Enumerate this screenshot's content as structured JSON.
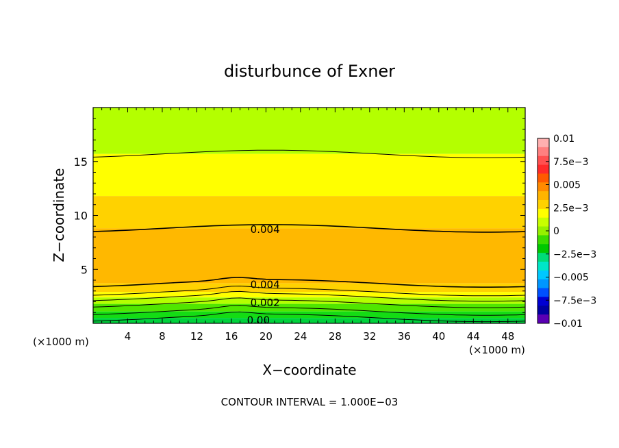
{
  "chart_data": {
    "type": "contour",
    "title": "disturbunce of Exner",
    "xlabel": "X−coordinate",
    "ylabel": "Z−coordinate",
    "x_unit_left": "(×1000 m)",
    "x_unit_right": "(×1000 m)",
    "footer": "CONTOUR INTERVAL = 1.000E−03",
    "xlim": [
      0,
      50
    ],
    "ylim": [
      0,
      20
    ],
    "x_ticks": [
      4,
      8,
      12,
      16,
      20,
      24,
      28,
      32,
      36,
      40,
      44,
      48
    ],
    "y_ticks": [
      5,
      10,
      15
    ],
    "contour_interval": 0.001,
    "contour_labels": [
      {
        "text": "0.004",
        "x": 18.2,
        "y": 8.7
      },
      {
        "text": "0.004",
        "x": 18.2,
        "y": 3.6
      },
      {
        "text": "0.002",
        "x": 18.2,
        "y": 1.9
      },
      {
        "text": "0.00",
        "x": 17.8,
        "y": 0.3
      }
    ],
    "bands": [
      {
        "from": 15.7,
        "to": 20.0,
        "value": 0.0025
      },
      {
        "from": 11.8,
        "to": 15.7,
        "value": 0.003
      },
      {
        "from": 8.8,
        "to": 11.8,
        "value": 0.0035
      },
      {
        "from": 3.7,
        "to": 8.8,
        "value": 0.004
      },
      {
        "from": 2.9,
        "to": 3.7,
        "value": 0.0035
      },
      {
        "from": 2.4,
        "to": 2.9,
        "value": 0.003
      },
      {
        "from": 1.8,
        "to": 2.4,
        "value": 0.0025
      },
      {
        "from": 1.1,
        "to": 1.8,
        "value": 0.002
      },
      {
        "from": 0.5,
        "to": 1.1,
        "value": 0.0015
      },
      {
        "from": 0.0,
        "to": 0.5,
        "value": 0.001
      }
    ],
    "colorbar": {
      "labels": [
        "0.01",
        "7.5e−3",
        "0.005",
        "2.5e−3",
        "0",
        "−2.5e−3",
        "−0.005",
        "−7.5e−3",
        "−0.01"
      ],
      "colors": [
        "#ffb0b0",
        "#ff8080",
        "#ff5050",
        "#ff2a2a",
        "#ff5a00",
        "#ff8a00",
        "#ffb400",
        "#ffd200",
        "#ffff00",
        "#c8ff00",
        "#96f000",
        "#3cdc00",
        "#00c800",
        "#00dc78",
        "#00e6c8",
        "#00c8ff",
        "#0096ff",
        "#0050ff",
        "#0000d2",
        "#0000a0",
        "#5a00b4"
      ]
    }
  }
}
